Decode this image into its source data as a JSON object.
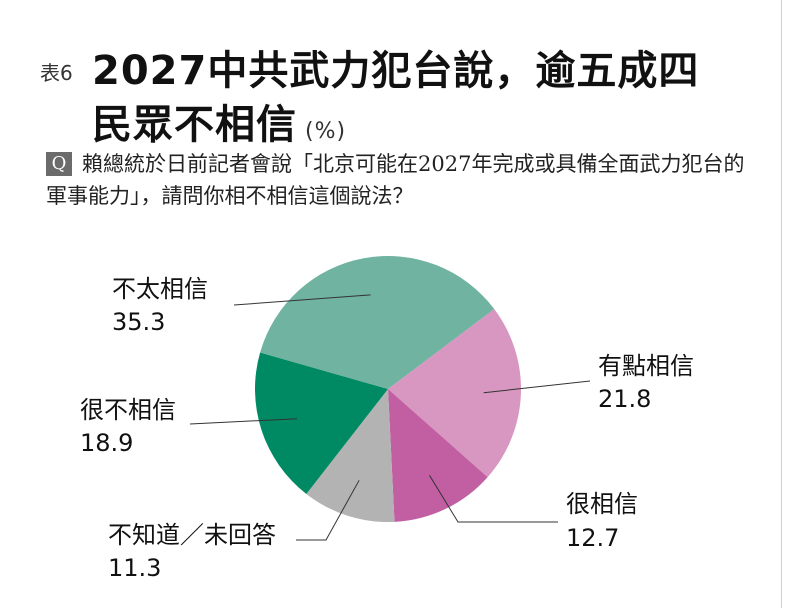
{
  "header": {
    "table_no": "表6",
    "title_line1": "2027中共武力犯台說，逾五成四",
    "title_line2": "民眾不相信",
    "unit": "(%)"
  },
  "question": {
    "badge": "Q",
    "text": "賴總統於日前記者會說「北京可能在2027年完成或具備全面武力犯台的軍事能力」，請問你相不相信這個說法？"
  },
  "chart_data": {
    "type": "pie",
    "title": "2027中共武力犯台說，逾五成四民眾不相信",
    "unit": "(%)",
    "slices": [
      {
        "label": "有點相信",
        "value": 21.8,
        "value_text": "21.8",
        "color": "#d897c0"
      },
      {
        "label": "很相信",
        "value": 12.7,
        "value_text": "12.7",
        "color": "#c25fa2"
      },
      {
        "label": "不知道／未回答",
        "value": 11.3,
        "value_text": "11.3",
        "color": "#b3b3b3"
      },
      {
        "label": "很不相信",
        "value": 18.9,
        "value_text": "18.9",
        "color": "#008a64"
      },
      {
        "label": "不太相信",
        "value": 35.3,
        "value_text": "35.3",
        "color": "#6fb3a0"
      }
    ]
  }
}
